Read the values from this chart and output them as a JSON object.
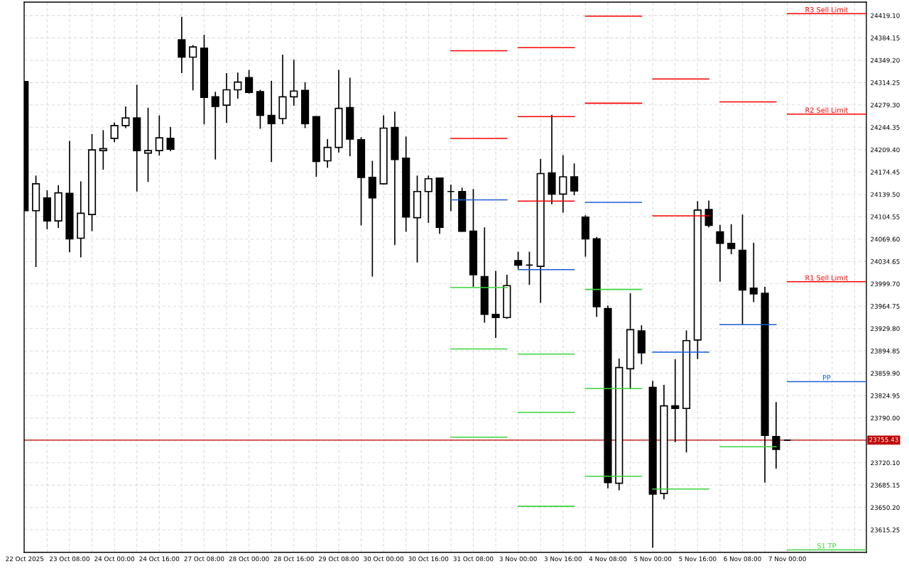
{
  "chart_data": {
    "type": "candlestick",
    "color": "#000000",
    "grid": true,
    "categories": [
      "22 Oct 2025",
      null,
      null,
      null,
      "23 Oct 08:00",
      null,
      null,
      null,
      "24 Oct 00:00",
      null,
      null,
      null,
      "24 Oct 16:00",
      null,
      null,
      null,
      "27 Oct 08:00",
      null,
      null,
      null,
      "28 Oct 00:00",
      null,
      null,
      null,
      "28 Oct 16:00",
      null,
      null,
      null,
      "29 Oct 08:00",
      null,
      null,
      null,
      "30 Oct 00:00",
      null,
      null,
      null,
      "30 Oct 16:00",
      null,
      null,
      null,
      "31 Oct 08:00",
      null,
      null,
      null,
      "3 Nov 00:00",
      null,
      null,
      null,
      "3 Nov 16:00",
      null,
      null,
      null,
      "4 Nov 08:00",
      null,
      null,
      null,
      "5 Nov 00:00",
      null,
      null,
      null,
      "5 Nov 16:00",
      null,
      null,
      null,
      "6 Nov 08:00",
      null,
      null,
      null,
      "7 Nov 00:00",
      null,
      null,
      null,
      null,
      null,
      null,
      null
    ],
    "ohlc": [
      [
        24316,
        24316,
        24114,
        24114
      ],
      [
        24114,
        24168,
        24027,
        24156
      ],
      [
        24134,
        24145,
        24086,
        24098
      ],
      [
        24098,
        24153,
        24088,
        24142
      ],
      [
        24141,
        24222,
        24050,
        24070
      ],
      [
        24071,
        24159,
        24042,
        24110
      ],
      [
        24108,
        24233,
        24083,
        24209
      ],
      [
        24208,
        24239,
        24179,
        24211
      ],
      [
        24227,
        24251,
        24222,
        24247
      ],
      [
        24247,
        24276,
        24244,
        24259
      ],
      [
        24259,
        24310,
        24145,
        24208
      ],
      [
        24204,
        24274,
        24160,
        24208
      ],
      [
        24208,
        24262,
        24201,
        24228
      ],
      [
        24227,
        24244,
        24208,
        24210
      ],
      [
        24381,
        24416,
        24330,
        24354
      ],
      [
        24354,
        24372,
        24303,
        24370
      ],
      [
        24368,
        24388,
        24250,
        24291
      ],
      [
        24292,
        24299,
        24195,
        24277
      ],
      [
        24279,
        24328,
        24252,
        24303
      ],
      [
        24303,
        24329,
        24290,
        24315
      ],
      [
        24322,
        24333,
        24298,
        24299
      ],
      [
        24300,
        24302,
        24243,
        24263
      ],
      [
        24263,
        24316,
        24191,
        24250
      ],
      [
        24258,
        24357,
        24250,
        24292
      ],
      [
        24292,
        24349,
        24279,
        24301
      ],
      [
        24302,
        24314,
        24244,
        24250
      ],
      [
        24261,
        24261,
        24168,
        24191
      ],
      [
        24192,
        24225,
        24182,
        24213
      ],
      [
        24213,
        24333,
        24206,
        24274
      ],
      [
        24275,
        24321,
        24200,
        24226
      ],
      [
        24225,
        24228,
        24092,
        24166
      ],
      [
        24166,
        24191,
        24012,
        24134
      ],
      [
        24156,
        24262,
        24156,
        24243
      ],
      [
        24244,
        24268,
        24061,
        24194
      ],
      [
        24196,
        24229,
        24082,
        24104
      ],
      [
        24103,
        24168,
        24034,
        24144
      ],
      [
        24144,
        24168,
        24096,
        24164
      ],
      [
        24165,
        24165,
        24079,
        24088
      ],
      [
        24144,
        24154,
        24114,
        24144
      ],
      [
        24144,
        24149,
        24082,
        24082
      ],
      [
        24082,
        24147,
        23996,
        24014
      ],
      [
        24011,
        24087,
        23940,
        23952
      ],
      [
        23952,
        24019,
        23916,
        23947
      ],
      [
        23947,
        24013,
        23946,
        23997
      ],
      [
        24036,
        24049,
        24024,
        24029
      ],
      [
        24029,
        24049,
        23999,
        24029
      ],
      [
        24027,
        24194,
        23971,
        24172
      ],
      [
        24173,
        24263,
        24125,
        24140
      ],
      [
        24140,
        24200,
        24112,
        24167
      ],
      [
        24167,
        24187,
        24139,
        24145
      ],
      [
        24104,
        24106,
        24043,
        24070
      ],
      [
        24070,
        24072,
        23949,
        23964
      ],
      [
        23961,
        23965,
        23681,
        23689
      ],
      [
        23688,
        23882,
        23678,
        23869
      ],
      [
        23867,
        23984,
        23837,
        23928
      ],
      [
        23926,
        23934,
        23875,
        23892
      ],
      [
        23838,
        23847,
        23588,
        23671
      ],
      [
        23672,
        23841,
        23664,
        23809
      ],
      [
        23809,
        23881,
        23753,
        23805
      ],
      [
        23805,
        23926,
        23737,
        23911
      ],
      [
        23912,
        24128,
        23883,
        24115
      ],
      [
        24116,
        24129,
        24089,
        24091
      ],
      [
        24081,
        24091,
        24004,
        24063
      ],
      [
        24063,
        24092,
        24047,
        24055
      ],
      [
        24052,
        24107,
        23937,
        23990
      ],
      [
        23993,
        24063,
        23972,
        23984
      ],
      [
        23985,
        23994,
        23690,
        23763
      ],
      [
        23761,
        23814,
        23712,
        23741
      ],
      [
        23755.43,
        23755.43,
        23755.43,
        23755.43
      ],
      null,
      null,
      null,
      null,
      null,
      null,
      null
    ],
    "series": [
      {
        "type": "step",
        "color": "#ff0000",
        "values": [
          null,
          null,
          null,
          null,
          null,
          null,
          null,
          null,
          null,
          null,
          null,
          null,
          null,
          null,
          null,
          null,
          null,
          null,
          null,
          null,
          null,
          null,
          null,
          null,
          null,
          null,
          null,
          null,
          null,
          null,
          null,
          null,
          null,
          null,
          null,
          null,
          null,
          null,
          24364,
          24364,
          24364,
          24364,
          24364,
          24364,
          24369,
          24369,
          24369,
          24369,
          24369,
          24369,
          24418,
          24418,
          24418,
          24418,
          24418,
          24418,
          24320,
          24320,
          24320,
          24320,
          24320,
          24320,
          24284,
          24284,
          24284,
          24284,
          24284,
          24284,
          null,
          null,
          null,
          null,
          null,
          null,
          null,
          null
        ]
      },
      {
        "type": "step",
        "color": "#ff0000",
        "values": [
          null,
          null,
          null,
          null,
          null,
          null,
          null,
          null,
          null,
          null,
          null,
          null,
          null,
          null,
          null,
          null,
          null,
          null,
          null,
          null,
          null,
          null,
          null,
          null,
          null,
          null,
          null,
          null,
          null,
          null,
          null,
          null,
          null,
          null,
          null,
          null,
          null,
          null,
          24227,
          24227,
          24227,
          24227,
          24227,
          24227,
          24261,
          24261,
          24261,
          24261,
          24261,
          24261,
          24282,
          24282,
          24282,
          24282,
          24282,
          24282,
          24106,
          24106,
          24106,
          24106,
          24106,
          24106,
          null,
          null,
          null,
          null,
          null,
          null,
          null,
          null,
          null,
          null,
          null,
          null,
          null,
          null
        ]
      },
      {
        "type": "step",
        "color": "#ff0000",
        "values": [
          null,
          null,
          null,
          null,
          null,
          null,
          null,
          null,
          null,
          null,
          null,
          null,
          null,
          null,
          null,
          null,
          null,
          null,
          null,
          null,
          null,
          null,
          null,
          null,
          null,
          null,
          null,
          null,
          null,
          null,
          null,
          null,
          null,
          null,
          null,
          null,
          null,
          null,
          null,
          null,
          null,
          null,
          null,
          null,
          24129,
          24129,
          24129,
          24129,
          24129,
          24129,
          null,
          null,
          null,
          null,
          null,
          null,
          null,
          null,
          null,
          null,
          null,
          null,
          null,
          null,
          null,
          null,
          null,
          null,
          null,
          null,
          null,
          null,
          null,
          null,
          null,
          null
        ]
      },
      {
        "type": "step",
        "color": "#1a5fd6",
        "values": [
          null,
          null,
          null,
          null,
          null,
          null,
          null,
          null,
          null,
          null,
          null,
          null,
          null,
          null,
          null,
          null,
          null,
          null,
          null,
          null,
          null,
          null,
          null,
          null,
          null,
          null,
          null,
          null,
          null,
          null,
          null,
          null,
          null,
          null,
          null,
          null,
          null,
          null,
          24131,
          24131,
          24131,
          24131,
          24131,
          24131,
          24022,
          24022,
          24022,
          24022,
          24022,
          24022,
          24127,
          24127,
          24127,
          24127,
          24127,
          24127,
          23893,
          23893,
          23893,
          23893,
          23893,
          23893,
          23936,
          23936,
          23936,
          23936,
          23936,
          23936,
          null,
          null,
          null,
          null,
          null,
          null,
          null,
          null
        ]
      },
      {
        "type": "step",
        "color": "#3ad43a",
        "values": [
          null,
          null,
          null,
          null,
          null,
          null,
          null,
          null,
          null,
          null,
          null,
          null,
          null,
          null,
          null,
          null,
          null,
          null,
          null,
          null,
          null,
          null,
          null,
          null,
          null,
          null,
          null,
          null,
          null,
          null,
          null,
          null,
          null,
          null,
          null,
          null,
          null,
          null,
          23994,
          23994,
          23994,
          23994,
          23994,
          23994,
          23890,
          23890,
          23890,
          23890,
          23890,
          23890,
          23991,
          23991,
          23991,
          23991,
          23991,
          23991,
          23679,
          23679,
          23679,
          23679,
          23679,
          23679,
          23745,
          23745,
          23745,
          23745,
          23745,
          23745,
          null,
          null,
          null,
          null,
          null,
          null,
          null,
          null
        ]
      },
      {
        "type": "step",
        "color": "#3ad43a",
        "values": [
          null,
          null,
          null,
          null,
          null,
          null,
          null,
          null,
          null,
          null,
          null,
          null,
          null,
          null,
          null,
          null,
          null,
          null,
          null,
          null,
          null,
          null,
          null,
          null,
          null,
          null,
          null,
          null,
          null,
          null,
          null,
          null,
          null,
          null,
          null,
          null,
          null,
          null,
          23898,
          23898,
          23898,
          23898,
          23898,
          23898,
          23799,
          23799,
          23799,
          23799,
          23799,
          23799,
          23836,
          23836,
          23836,
          23836,
          23836,
          23836,
          null,
          null,
          null,
          null,
          null,
          null,
          null,
          null,
          null,
          null,
          null,
          null,
          null,
          null,
          null,
          null,
          null,
          null,
          null,
          null
        ]
      },
      {
        "type": "step",
        "color": "#3ad43a",
        "values": [
          null,
          null,
          null,
          null,
          null,
          null,
          null,
          null,
          null,
          null,
          null,
          null,
          null,
          null,
          null,
          null,
          null,
          null,
          null,
          null,
          null,
          null,
          null,
          null,
          null,
          null,
          null,
          null,
          null,
          null,
          null,
          null,
          null,
          null,
          null,
          null,
          null,
          null,
          23760,
          23760,
          23760,
          23760,
          23760,
          23760,
          23652,
          23652,
          23652,
          23652,
          23652,
          23652,
          23699,
          23699,
          23699,
          23699,
          23699,
          23699,
          null,
          null,
          null,
          null,
          null,
          null,
          null,
          null,
          null,
          null,
          null,
          null,
          null,
          null,
          null,
          null,
          null,
          null,
          null,
          null
        ]
      },
      {
        "type": "step",
        "name": "R3 Sell Limit",
        "color": "#ff0000",
        "values": [
          null,
          null,
          null,
          null,
          null,
          null,
          null,
          null,
          null,
          null,
          null,
          null,
          null,
          null,
          null,
          null,
          null,
          null,
          null,
          null,
          null,
          null,
          null,
          null,
          null,
          null,
          null,
          null,
          null,
          null,
          null,
          null,
          null,
          null,
          null,
          null,
          null,
          null,
          null,
          null,
          null,
          null,
          null,
          null,
          null,
          null,
          null,
          null,
          null,
          null,
          null,
          null,
          null,
          null,
          null,
          null,
          null,
          null,
          null,
          null,
          null,
          null,
          null,
          null,
          null,
          null,
          null,
          null,
          24422,
          24422,
          24422,
          24422,
          24422,
          24422,
          24422,
          24422
        ]
      },
      {
        "type": "step",
        "name": "R2 Sell Limit",
        "color": "#ff0000",
        "values": [
          null,
          null,
          null,
          null,
          null,
          null,
          null,
          null,
          null,
          null,
          null,
          null,
          null,
          null,
          null,
          null,
          null,
          null,
          null,
          null,
          null,
          null,
          null,
          null,
          null,
          null,
          null,
          null,
          null,
          null,
          null,
          null,
          null,
          null,
          null,
          null,
          null,
          null,
          null,
          null,
          null,
          null,
          null,
          null,
          null,
          null,
          null,
          null,
          null,
          null,
          null,
          null,
          null,
          null,
          null,
          null,
          null,
          null,
          null,
          null,
          null,
          null,
          null,
          null,
          null,
          null,
          null,
          null,
          24265,
          24265,
          24265,
          24265,
          24265,
          24265,
          24265,
          24265
        ]
      },
      {
        "type": "step",
        "name": "R1 Sell Limit",
        "color": "#ff0000",
        "values": [
          null,
          null,
          null,
          null,
          null,
          null,
          null,
          null,
          null,
          null,
          null,
          null,
          null,
          null,
          null,
          null,
          null,
          null,
          null,
          null,
          null,
          null,
          null,
          null,
          null,
          null,
          null,
          null,
          null,
          null,
          null,
          null,
          null,
          null,
          null,
          null,
          null,
          null,
          null,
          null,
          null,
          null,
          null,
          null,
          null,
          null,
          null,
          null,
          null,
          null,
          null,
          null,
          null,
          null,
          null,
          null,
          null,
          null,
          null,
          null,
          null,
          null,
          null,
          null,
          null,
          null,
          null,
          null,
          24003,
          24003,
          24003,
          24003,
          24003,
          24003,
          24003,
          24003
        ]
      },
      {
        "type": "step",
        "name": "PP",
        "color": "#1a5fd6",
        "values": [
          null,
          null,
          null,
          null,
          null,
          null,
          null,
          null,
          null,
          null,
          null,
          null,
          null,
          null,
          null,
          null,
          null,
          null,
          null,
          null,
          null,
          null,
          null,
          null,
          null,
          null,
          null,
          null,
          null,
          null,
          null,
          null,
          null,
          null,
          null,
          null,
          null,
          null,
          null,
          null,
          null,
          null,
          null,
          null,
          null,
          null,
          null,
          null,
          null,
          null,
          null,
          null,
          null,
          null,
          null,
          null,
          null,
          null,
          null,
          null,
          null,
          null,
          null,
          null,
          null,
          null,
          null,
          null,
          23847,
          23847,
          23847,
          23847,
          23847,
          23847,
          23847,
          23847
        ]
      },
      {
        "type": "step",
        "name": "S1 TP",
        "color": "#3ad43a",
        "values": [
          null,
          null,
          null,
          null,
          null,
          null,
          null,
          null,
          null,
          null,
          null,
          null,
          null,
          null,
          null,
          null,
          null,
          null,
          null,
          null,
          null,
          null,
          null,
          null,
          null,
          null,
          null,
          null,
          null,
          null,
          null,
          null,
          null,
          null,
          null,
          null,
          null,
          null,
          null,
          null,
          null,
          null,
          null,
          null,
          null,
          null,
          null,
          null,
          null,
          null,
          null,
          null,
          null,
          null,
          null,
          null,
          null,
          null,
          null,
          null,
          null,
          null,
          null,
          null,
          null,
          null,
          null,
          null,
          23584,
          23584,
          23584,
          23584,
          23584,
          23584,
          23584,
          23584
        ]
      }
    ],
    "ref_lines": [
      {
        "axis": "y",
        "value": 23755.43,
        "label": "23755.43",
        "color": "#c00000"
      }
    ],
    "ylim": [
      23580,
      24440
    ],
    "yticks": [
      {
        "value": 24419.1,
        "label": "24419.10"
      },
      24384.15,
      {
        "value": 24349.2,
        "label": "24349.20"
      },
      24314.25,
      {
        "value": 24279.3,
        "label": "24279.30"
      },
      24244.35,
      {
        "value": 24209.4,
        "label": "24209.40"
      },
      24174.45,
      {
        "value": 24139.5,
        "label": "24139.50"
      },
      24104.55,
      {
        "value": 24069.6,
        "label": "24069.60"
      },
      24034.65,
      {
        "value": 23999.7,
        "label": "23999.70"
      },
      23964.75,
      {
        "value": 23929.8,
        "label": "23929.80"
      },
      23894.85,
      {
        "value": 23859.9,
        "label": "23859.90"
      },
      23824.95,
      {
        "value": 23790,
        "label": "23790.00"
      },
      {
        "value": 23755.05,
        "label": null
      },
      {
        "value": 23720.1,
        "label": "23720.10"
      },
      23685.15,
      {
        "value": 23650.2,
        "label": "23650.20"
      },
      23615.25
    ]
  }
}
